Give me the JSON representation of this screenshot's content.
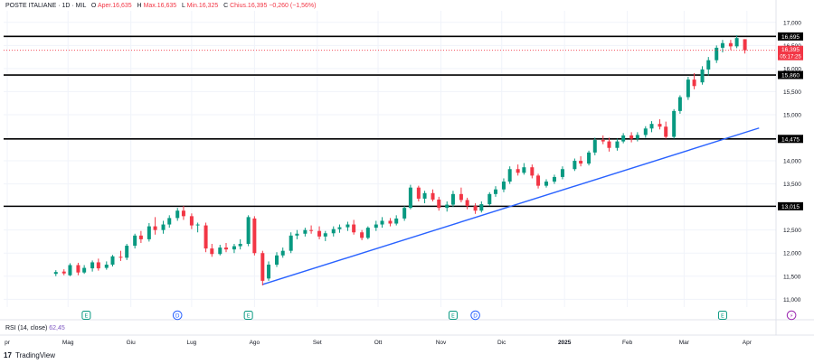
{
  "header": {
    "symbol": "POSTE ITALIANE · 1D · MIL",
    "o_label": "O",
    "o_value": "Aper.16,635",
    "h_label": "H",
    "h_value": "Max.16,635",
    "l_label": "L",
    "l_value": "Min.16,325",
    "c_label": "C",
    "c_value": "Chius.16,395",
    "change": "−0,260 (−1,56%)"
  },
  "rsi": {
    "label": "RSI (14, close)",
    "value": "62,45"
  },
  "branding": {
    "logo": "17",
    "name": "TradingView"
  },
  "price_tag": {
    "price": "16,395",
    "countdown": "05:17:25"
  },
  "colors": {
    "up": "#089981",
    "down": "#f23645",
    "trendline": "#2962ff",
    "level_line": "#000000",
    "grid": "#f0f3fa",
    "axis_text": "#131722",
    "event_earnings": "#089981",
    "event_dividend": "#2962ff",
    "event_split": "#9c27b0"
  },
  "chart_data": {
    "type": "candlestick",
    "title": "",
    "x_ticks": [
      "pr",
      "Mag",
      "Giu",
      "Lug",
      "Ago",
      "Set",
      "Ott",
      "Nov",
      "Dic",
      "2025",
      "Feb",
      "Mar",
      "Apr"
    ],
    "y_ticks": [
      "17,000",
      "16,500",
      "16,000",
      "15,500",
      "15,000",
      "14,500",
      "14,000",
      "13,500",
      "13,000",
      "12,500",
      "12,000",
      "11,500",
      "11,000"
    ],
    "ylim": [
      10.83,
      17.25
    ],
    "grid": true,
    "levels": [
      {
        "value": 16.695,
        "label": "16,695"
      },
      {
        "value": 15.86,
        "label": "15,860"
      },
      {
        "value": 14.475,
        "label": "14,475"
      },
      {
        "value": 13.015,
        "label": "13,015"
      }
    ],
    "trendline": {
      "from": {
        "date": "2024-08-05",
        "price": 11.32
      },
      "to": {
        "date": "2025-04-07",
        "price": 14.71
      }
    },
    "candles": [
      {
        "date": "2024-04-25",
        "o": 11.55,
        "h": 11.63,
        "l": 11.5,
        "c": 11.59
      },
      {
        "date": "2024-04-29",
        "o": 11.6,
        "h": 11.65,
        "l": 11.52,
        "c": 11.56
      },
      {
        "date": "2024-05-02",
        "o": 11.52,
        "h": 11.78,
        "l": 11.5,
        "c": 11.74
      },
      {
        "date": "2024-05-06",
        "o": 11.74,
        "h": 11.79,
        "l": 11.52,
        "c": 11.58
      },
      {
        "date": "2024-05-09",
        "o": 11.58,
        "h": 11.74,
        "l": 11.55,
        "c": 11.68
      },
      {
        "date": "2024-05-13",
        "o": 11.67,
        "h": 11.84,
        "l": 11.6,
        "c": 11.8
      },
      {
        "date": "2024-05-16",
        "o": 11.8,
        "h": 11.88,
        "l": 11.62,
        "c": 11.67
      },
      {
        "date": "2024-05-20",
        "o": 11.68,
        "h": 11.82,
        "l": 11.64,
        "c": 11.75
      },
      {
        "date": "2024-05-23",
        "o": 11.75,
        "h": 11.96,
        "l": 11.71,
        "c": 11.93
      },
      {
        "date": "2024-05-27",
        "o": 11.92,
        "h": 12.05,
        "l": 11.83,
        "c": 11.9
      },
      {
        "date": "2024-05-30",
        "o": 11.9,
        "h": 12.2,
        "l": 11.85,
        "c": 12.16
      },
      {
        "date": "2024-06-03",
        "o": 12.16,
        "h": 12.42,
        "l": 12.1,
        "c": 12.38
      },
      {
        "date": "2024-06-06",
        "o": 12.38,
        "h": 12.48,
        "l": 12.22,
        "c": 12.3
      },
      {
        "date": "2024-06-10",
        "o": 12.3,
        "h": 12.65,
        "l": 12.25,
        "c": 12.58
      },
      {
        "date": "2024-06-13",
        "o": 12.58,
        "h": 12.78,
        "l": 12.4,
        "c": 12.5
      },
      {
        "date": "2024-06-17",
        "o": 12.5,
        "h": 12.7,
        "l": 12.42,
        "c": 12.62
      },
      {
        "date": "2024-06-20",
        "o": 12.62,
        "h": 12.82,
        "l": 12.55,
        "c": 12.76
      },
      {
        "date": "2024-06-24",
        "o": 12.76,
        "h": 12.98,
        "l": 12.7,
        "c": 12.92
      },
      {
        "date": "2024-06-27",
        "o": 12.92,
        "h": 13.02,
        "l": 12.72,
        "c": 12.8
      },
      {
        "date": "2024-07-01",
        "o": 12.8,
        "h": 12.86,
        "l": 12.52,
        "c": 12.6
      },
      {
        "date": "2024-07-04",
        "o": 12.6,
        "h": 12.66,
        "l": 12.45,
        "c": 12.62
      },
      {
        "date": "2024-07-08",
        "o": 12.6,
        "h": 12.66,
        "l": 12.02,
        "c": 12.1
      },
      {
        "date": "2024-07-11",
        "o": 12.1,
        "h": 12.2,
        "l": 11.92,
        "c": 11.98
      },
      {
        "date": "2024-07-15",
        "o": 11.98,
        "h": 12.18,
        "l": 11.95,
        "c": 12.12
      },
      {
        "date": "2024-07-18",
        "o": 12.12,
        "h": 12.22,
        "l": 12.02,
        "c": 12.08
      },
      {
        "date": "2024-07-22",
        "o": 12.08,
        "h": 12.2,
        "l": 12.0,
        "c": 12.15
      },
      {
        "date": "2024-07-25",
        "o": 12.15,
        "h": 12.3,
        "l": 12.08,
        "c": 12.2
      },
      {
        "date": "2024-07-29",
        "o": 12.2,
        "h": 12.82,
        "l": 12.15,
        "c": 12.78
      },
      {
        "date": "2024-08-01",
        "o": 12.75,
        "h": 12.8,
        "l": 11.95,
        "c": 12.0
      },
      {
        "date": "2024-08-05",
        "o": 12.0,
        "h": 12.05,
        "l": 11.3,
        "c": 11.4
      },
      {
        "date": "2024-08-08",
        "o": 11.45,
        "h": 11.82,
        "l": 11.4,
        "c": 11.75
      },
      {
        "date": "2024-08-12",
        "o": 11.75,
        "h": 12.02,
        "l": 11.7,
        "c": 11.95
      },
      {
        "date": "2024-08-15",
        "o": 11.95,
        "h": 12.12,
        "l": 11.9,
        "c": 12.05
      },
      {
        "date": "2024-08-19",
        "o": 12.05,
        "h": 12.45,
        "l": 12.0,
        "c": 12.38
      },
      {
        "date": "2024-08-22",
        "o": 12.38,
        "h": 12.5,
        "l": 12.3,
        "c": 12.42
      },
      {
        "date": "2024-08-26",
        "o": 12.42,
        "h": 12.55,
        "l": 12.36,
        "c": 12.5
      },
      {
        "date": "2024-08-29",
        "o": 12.5,
        "h": 12.6,
        "l": 12.42,
        "c": 12.48
      },
      {
        "date": "2024-09-02",
        "o": 12.48,
        "h": 12.58,
        "l": 12.3,
        "c": 12.36
      },
      {
        "date": "2024-09-05",
        "o": 12.36,
        "h": 12.48,
        "l": 12.26,
        "c": 12.43
      },
      {
        "date": "2024-09-09",
        "o": 12.43,
        "h": 12.58,
        "l": 12.36,
        "c": 12.52
      },
      {
        "date": "2024-09-12",
        "o": 12.52,
        "h": 12.62,
        "l": 12.44,
        "c": 12.56
      },
      {
        "date": "2024-09-16",
        "o": 12.56,
        "h": 12.68,
        "l": 12.48,
        "c": 12.62
      },
      {
        "date": "2024-09-19",
        "o": 12.62,
        "h": 12.72,
        "l": 12.4,
        "c": 12.45
      },
      {
        "date": "2024-09-23",
        "o": 12.45,
        "h": 12.5,
        "l": 12.28,
        "c": 12.33
      },
      {
        "date": "2024-09-26",
        "o": 12.33,
        "h": 12.58,
        "l": 12.3,
        "c": 12.55
      },
      {
        "date": "2024-09-30",
        "o": 12.55,
        "h": 12.7,
        "l": 12.48,
        "c": 12.62
      },
      {
        "date": "2024-10-03",
        "o": 12.62,
        "h": 12.78,
        "l": 12.55,
        "c": 12.7
      },
      {
        "date": "2024-10-07",
        "o": 12.7,
        "h": 12.76,
        "l": 12.58,
        "c": 12.64
      },
      {
        "date": "2024-10-10",
        "o": 12.64,
        "h": 12.82,
        "l": 12.6,
        "c": 12.75
      },
      {
        "date": "2024-10-14",
        "o": 12.75,
        "h": 13.02,
        "l": 12.7,
        "c": 12.98
      },
      {
        "date": "2024-10-17",
        "o": 12.98,
        "h": 13.48,
        "l": 12.95,
        "c": 13.42
      },
      {
        "date": "2024-10-21",
        "o": 13.42,
        "h": 13.46,
        "l": 13.12,
        "c": 13.18
      },
      {
        "date": "2024-10-24",
        "o": 13.18,
        "h": 13.35,
        "l": 13.08,
        "c": 13.3
      },
      {
        "date": "2024-10-28",
        "o": 13.3,
        "h": 13.38,
        "l": 13.12,
        "c": 13.16
      },
      {
        "date": "2024-10-31",
        "o": 13.16,
        "h": 13.22,
        "l": 12.92,
        "c": 12.98
      },
      {
        "date": "2024-11-04",
        "o": 12.98,
        "h": 13.12,
        "l": 12.9,
        "c": 13.05
      },
      {
        "date": "2024-11-07",
        "o": 13.05,
        "h": 13.35,
        "l": 13.0,
        "c": 13.28
      },
      {
        "date": "2024-11-11",
        "o": 13.28,
        "h": 13.42,
        "l": 13.1,
        "c": 13.15
      },
      {
        "date": "2024-11-14",
        "o": 13.15,
        "h": 13.2,
        "l": 12.95,
        "c": 13.02
      },
      {
        "date": "2024-11-18",
        "o": 13.02,
        "h": 13.08,
        "l": 12.85,
        "c": 12.92
      },
      {
        "date": "2024-11-21",
        "o": 12.92,
        "h": 13.12,
        "l": 12.88,
        "c": 13.06
      },
      {
        "date": "2024-11-25",
        "o": 13.06,
        "h": 13.32,
        "l": 13.02,
        "c": 13.28
      },
      {
        "date": "2024-11-28",
        "o": 13.28,
        "h": 13.45,
        "l": 13.22,
        "c": 13.38
      },
      {
        "date": "2024-12-02",
        "o": 13.38,
        "h": 13.62,
        "l": 13.32,
        "c": 13.55
      },
      {
        "date": "2024-12-05",
        "o": 13.55,
        "h": 13.88,
        "l": 13.5,
        "c": 13.82
      },
      {
        "date": "2024-12-09",
        "o": 13.82,
        "h": 13.92,
        "l": 13.68,
        "c": 13.74
      },
      {
        "date": "2024-12-12",
        "o": 13.74,
        "h": 13.95,
        "l": 13.7,
        "c": 13.86
      },
      {
        "date": "2024-12-16",
        "o": 13.86,
        "h": 13.92,
        "l": 13.62,
        "c": 13.68
      },
      {
        "date": "2024-12-19",
        "o": 13.68,
        "h": 13.72,
        "l": 13.4,
        "c": 13.46
      },
      {
        "date": "2024-12-23",
        "o": 13.46,
        "h": 13.6,
        "l": 13.42,
        "c": 13.55
      },
      {
        "date": "2024-12-27",
        "o": 13.55,
        "h": 13.7,
        "l": 13.5,
        "c": 13.65
      },
      {
        "date": "2024-12-31",
        "o": 13.65,
        "h": 13.88,
        "l": 13.6,
        "c": 13.82
      },
      {
        "date": "2025-01-06",
        "o": 13.82,
        "h": 14.05,
        "l": 13.78,
        "c": 14.0
      },
      {
        "date": "2025-01-09",
        "o": 14.0,
        "h": 14.1,
        "l": 13.88,
        "c": 13.94
      },
      {
        "date": "2025-01-13",
        "o": 13.94,
        "h": 14.22,
        "l": 13.9,
        "c": 14.18
      },
      {
        "date": "2025-01-16",
        "o": 14.18,
        "h": 14.5,
        "l": 14.12,
        "c": 14.45
      },
      {
        "date": "2025-01-20",
        "o": 14.45,
        "h": 14.55,
        "l": 14.36,
        "c": 14.42
      },
      {
        "date": "2025-01-23",
        "o": 14.42,
        "h": 14.5,
        "l": 14.2,
        "c": 14.28
      },
      {
        "date": "2025-01-27",
        "o": 14.28,
        "h": 14.48,
        "l": 14.22,
        "c": 14.42
      },
      {
        "date": "2025-01-30",
        "o": 14.42,
        "h": 14.6,
        "l": 14.38,
        "c": 14.55
      },
      {
        "date": "2025-02-03",
        "o": 14.55,
        "h": 14.62,
        "l": 14.4,
        "c": 14.48
      },
      {
        "date": "2025-02-06",
        "o": 14.48,
        "h": 14.62,
        "l": 14.42,
        "c": 14.56
      },
      {
        "date": "2025-02-10",
        "o": 14.56,
        "h": 14.75,
        "l": 14.5,
        "c": 14.7
      },
      {
        "date": "2025-02-13",
        "o": 14.7,
        "h": 14.86,
        "l": 14.62,
        "c": 14.8
      },
      {
        "date": "2025-02-17",
        "o": 14.8,
        "h": 14.9,
        "l": 14.68,
        "c": 14.74
      },
      {
        "date": "2025-02-20",
        "o": 14.74,
        "h": 14.85,
        "l": 14.48,
        "c": 14.52
      },
      {
        "date": "2025-02-24",
        "o": 14.52,
        "h": 15.12,
        "l": 14.48,
        "c": 15.08
      },
      {
        "date": "2025-02-27",
        "o": 15.08,
        "h": 15.42,
        "l": 15.02,
        "c": 15.38
      },
      {
        "date": "2025-03-03",
        "o": 15.38,
        "h": 15.82,
        "l": 15.32,
        "c": 15.76
      },
      {
        "date": "2025-03-06",
        "o": 15.76,
        "h": 15.9,
        "l": 15.55,
        "c": 15.62
      },
      {
        "date": "2025-03-10",
        "o": 15.7,
        "h": 16.05,
        "l": 15.65,
        "c": 15.98
      },
      {
        "date": "2025-03-13",
        "o": 15.98,
        "h": 16.25,
        "l": 15.85,
        "c": 16.18
      },
      {
        "date": "2025-03-17",
        "o": 16.18,
        "h": 16.5,
        "l": 16.12,
        "c": 16.45
      },
      {
        "date": "2025-03-20",
        "o": 16.45,
        "h": 16.62,
        "l": 16.35,
        "c": 16.55
      },
      {
        "date": "2025-03-24",
        "o": 16.55,
        "h": 16.62,
        "l": 16.4,
        "c": 16.48
      },
      {
        "date": "2025-03-27",
        "o": 16.48,
        "h": 16.72,
        "l": 16.44,
        "c": 16.66
      },
      {
        "date": "2025-03-31",
        "o": 16.635,
        "h": 16.635,
        "l": 16.325,
        "c": 16.395
      }
    ],
    "events": [
      {
        "type": "earnings",
        "glyph": "E",
        "date": "2024-05-10"
      },
      {
        "type": "dividend",
        "glyph": "D",
        "date": "2024-06-24"
      },
      {
        "type": "earnings",
        "glyph": "E",
        "date": "2024-07-29"
      },
      {
        "type": "earnings",
        "glyph": "E",
        "date": "2024-11-07"
      },
      {
        "type": "dividend",
        "glyph": "D",
        "date": "2024-11-18"
      },
      {
        "type": "earnings",
        "glyph": "E",
        "date": "2025-03-20"
      },
      {
        "type": "split",
        "glyph": "⚡",
        "date": "2025-04-23"
      }
    ]
  }
}
